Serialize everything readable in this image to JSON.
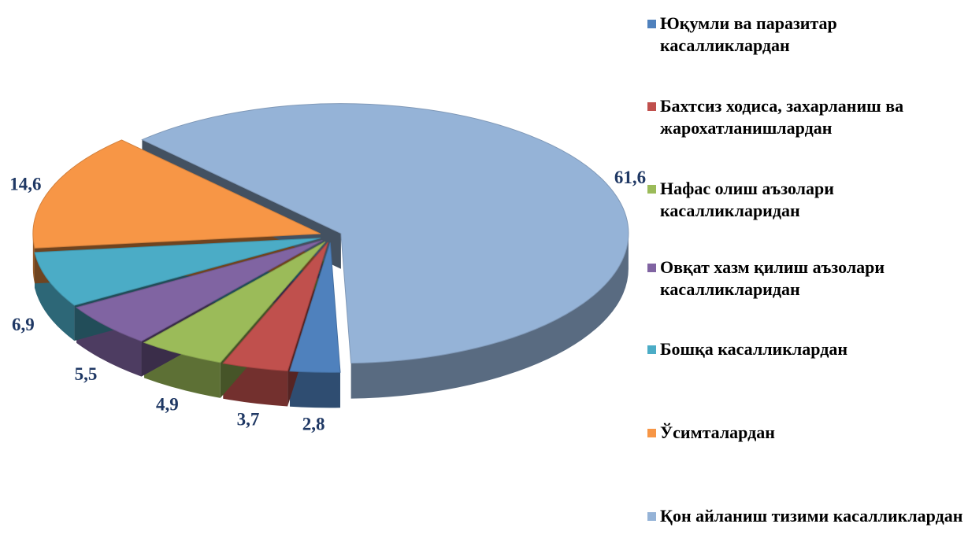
{
  "chart_data": {
    "type": "pie3d",
    "series": [
      {
        "name": "Юқумли ва паразитар касалликлардан",
        "color": "#4f81bd",
        "values": [
          2.8
        ],
        "value_labels": [
          "2,8"
        ]
      },
      {
        "name": "Бахтсиз ходиса, захарланиш ва жарохатланишлардан",
        "color": "#c0504d",
        "values": [
          3.7
        ],
        "value_labels": [
          "3,7"
        ]
      },
      {
        "name": "Нафас олиш аъзолари касалликларидан",
        "color": "#9bbb59",
        "values": [
          4.9
        ],
        "value_labels": [
          "4,9"
        ]
      },
      {
        "name": "Овқат хазм қилиш аъзолари касалликларидан",
        "color": "#8064a2",
        "values": [
          5.5
        ],
        "value_labels": [
          "5,5"
        ]
      },
      {
        "name": "Бошқа касалликлардан",
        "color": "#4bacc6",
        "values": [
          6.9
        ],
        "value_labels": [
          "6,9"
        ]
      },
      {
        "name": "Ўсимталардан",
        "color": "#f79646",
        "values": [
          14.6
        ],
        "value_labels": [
          "14,6"
        ]
      },
      {
        "name": "Қон айланиш тизими касалликлардан",
        "color": "#95b3d7",
        "values": [
          61.6
        ],
        "value_labels": [
          "61,6"
        ]
      }
    ],
    "legend": "right"
  }
}
